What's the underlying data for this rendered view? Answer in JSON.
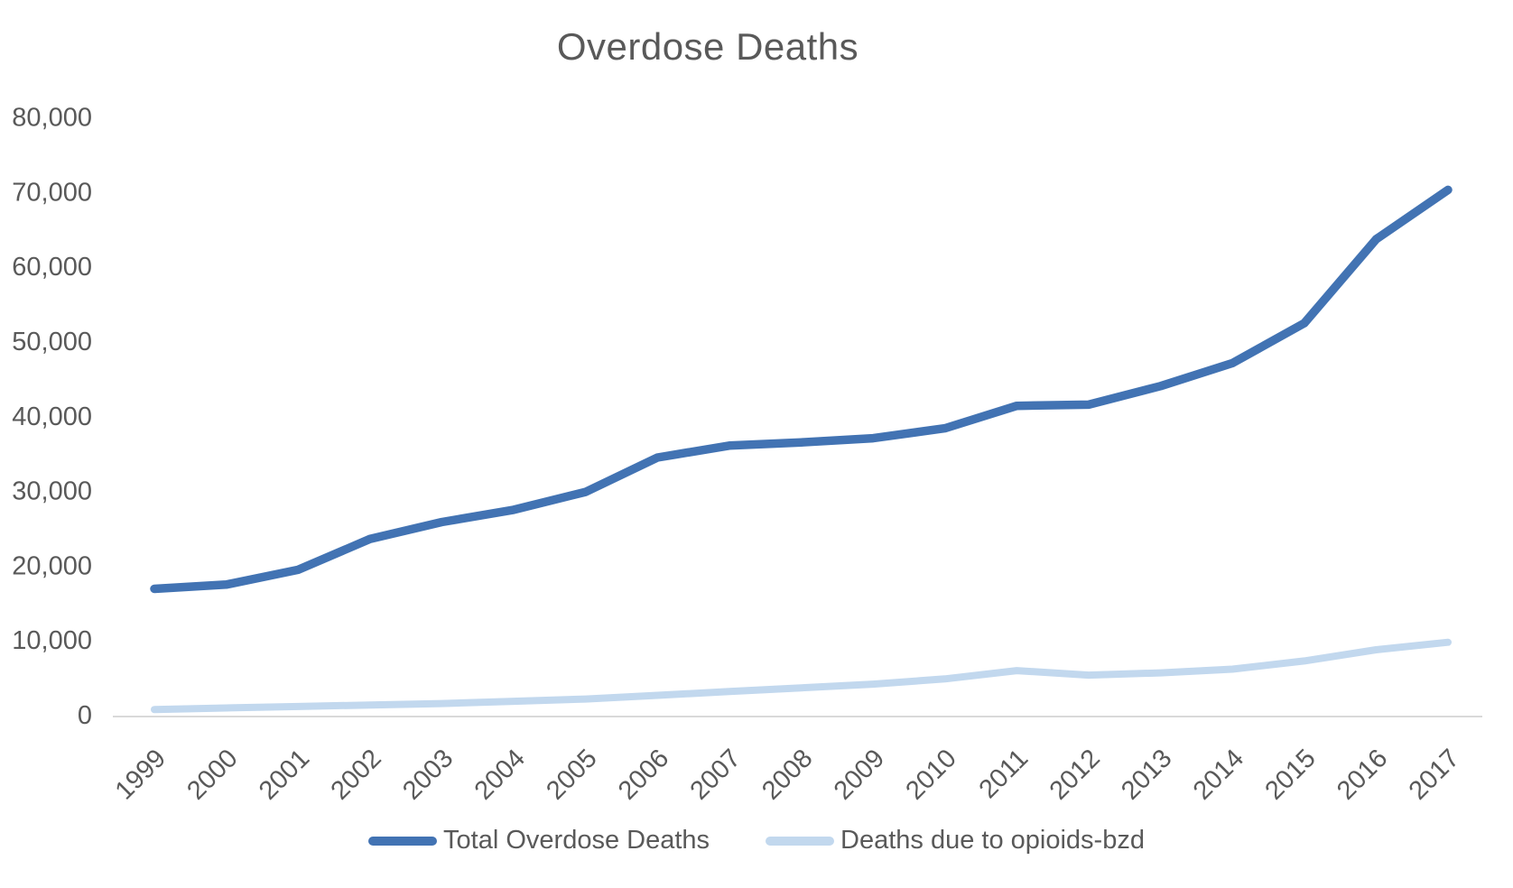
{
  "title": "Overdose Deaths",
  "colors": {
    "series_total": "#4273B3",
    "series_opioids_bzd": "#C2D8EE",
    "text": "#595959",
    "axis_line": "#D9D9D9",
    "background": "#FFFFFF"
  },
  "legend": {
    "position": "bottom",
    "items": [
      {
        "label": "Total Overdose Deaths",
        "color": "#4273B3"
      },
      {
        "label": "Deaths due to opioids-bzd",
        "color": "#C2D8EE"
      }
    ]
  },
  "chart_data": {
    "type": "line",
    "title": "Overdose Deaths",
    "xlabel": "",
    "ylabel": "",
    "grid": false,
    "legend_position": "bottom",
    "ylim": [
      0,
      80000
    ],
    "ytick_interval": 10000,
    "ytick_labels": [
      "0",
      "10,000",
      "20,000",
      "30,000",
      "40,000",
      "50,000",
      "60,000",
      "70,000",
      "80,000"
    ],
    "categories": [
      "1999",
      "2000",
      "2001",
      "2002",
      "2003",
      "2004",
      "2005",
      "2006",
      "2007",
      "2008",
      "2009",
      "2010",
      "2011",
      "2012",
      "2013",
      "2014",
      "2015",
      "2016",
      "2017"
    ],
    "series": [
      {
        "name": "Total Overdose Deaths",
        "color": "#4273B3",
        "stroke_width": 9.5,
        "values": [
          16849,
          17415,
          19394,
          23518,
          25785,
          27424,
          29813,
          34425,
          36010,
          36450,
          37004,
          38329,
          41340,
          41502,
          43982,
          47055,
          52404,
          63632,
          70237
        ]
      },
      {
        "name": "Deaths due to opioids-bzd",
        "color": "#C2D8EE",
        "stroke_width": 8,
        "values": [
          700,
          900,
          1100,
          1300,
          1500,
          1800,
          2100,
          2600,
          3100,
          3600,
          4100,
          4800,
          5900,
          5300,
          5600,
          6100,
          7200,
          8700,
          9700
        ]
      }
    ]
  }
}
